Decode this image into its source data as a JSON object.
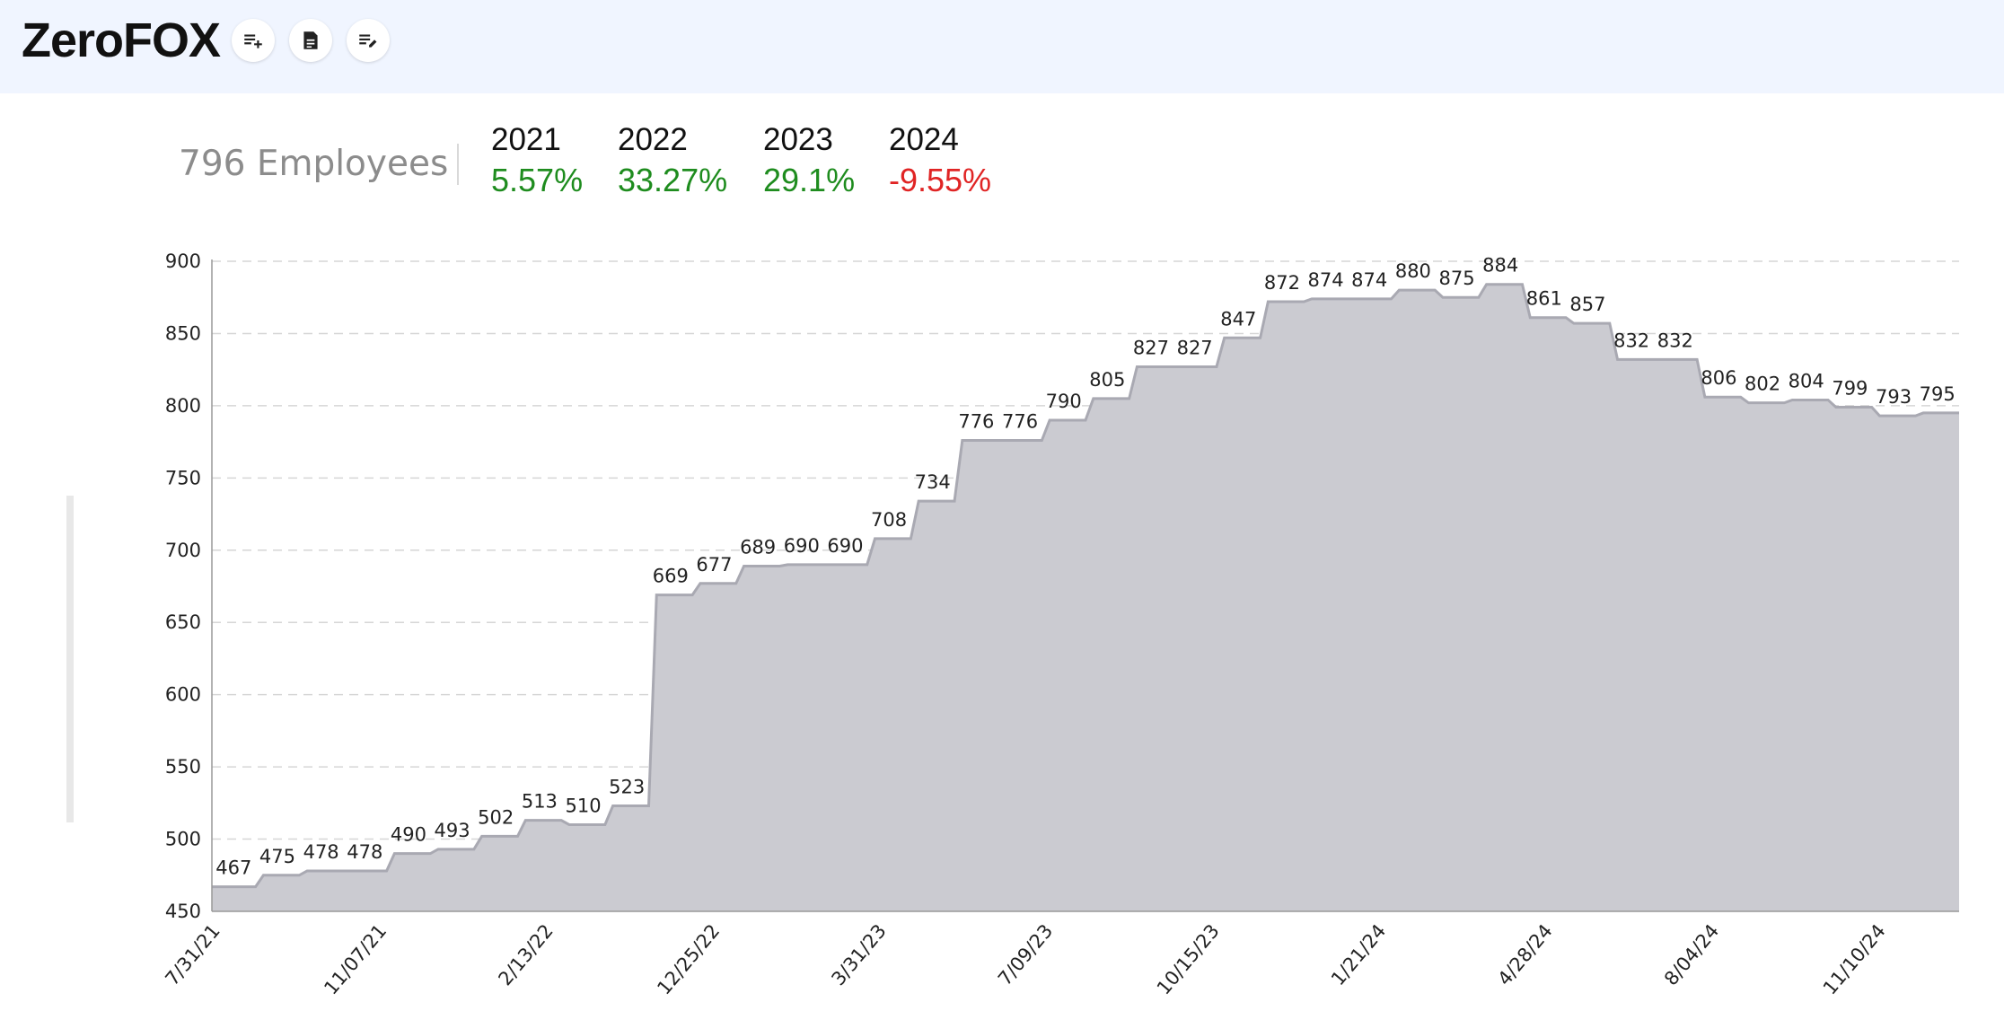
{
  "app": {
    "title": "ZeroFOX"
  },
  "toolbar": {
    "buttons": [
      {
        "name": "add-to-list-button",
        "icon": "playlist-add-icon"
      },
      {
        "name": "document-button",
        "icon": "document-icon"
      },
      {
        "name": "edit-list-button",
        "icon": "playlist-edit-icon"
      }
    ]
  },
  "summary": {
    "employees": "796 Employees",
    "years": [
      {
        "year": "2021",
        "change": "5.57%",
        "color": "#1e8c1e"
      },
      {
        "year": "2022",
        "change": "33.27%",
        "color": "#1e8c1e"
      },
      {
        "year": "2023",
        "change": "29.1%",
        "color": "#1e8c1e"
      },
      {
        "year": "2024",
        "change": "-9.55%",
        "color": "#e02424"
      }
    ]
  },
  "chart_data": {
    "type": "area",
    "title": "",
    "xlabel": "",
    "ylabel": "",
    "ylim": [
      450,
      900
    ],
    "yticks": [
      450,
      500,
      550,
      600,
      650,
      700,
      750,
      800,
      850,
      900
    ],
    "x_ticks": [
      "7/31/21",
      "11/07/21",
      "2/13/22",
      "12/25/22",
      "3/31/23",
      "7/09/23",
      "10/15/23",
      "1/21/24",
      "4/28/24",
      "8/04/24",
      "11/10/24"
    ],
    "grid": true,
    "fill_color": "#cbcbd1",
    "line_color": "#a9a9b2",
    "series": [
      {
        "values": [
          467,
          475,
          478,
          478,
          490,
          493,
          502,
          513,
          510,
          523,
          669,
          677,
          689,
          690,
          690,
          708,
          734,
          776,
          776,
          790,
          805,
          827,
          827,
          847,
          872,
          874,
          874,
          880,
          875,
          884,
          861,
          857,
          832,
          832,
          806,
          802,
          804,
          799,
          793,
          795
        ]
      }
    ]
  }
}
